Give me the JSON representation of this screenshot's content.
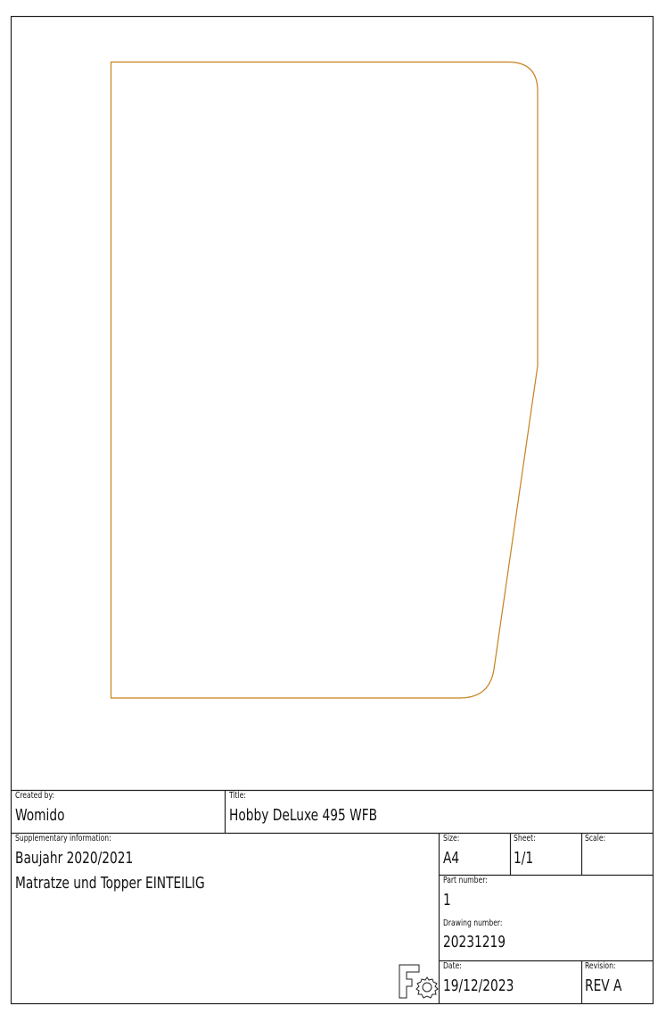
{
  "colors": {
    "outline": "#c8811e",
    "frame": "#222222"
  },
  "title_block": {
    "created_by": {
      "label": "Created by:",
      "value": "Womido"
    },
    "title": {
      "label": "Title:",
      "value": "Hobby DeLuxe 495 WFB"
    },
    "supplementary": {
      "label": "Supplementary information:",
      "lines": [
        "Baujahr 2020/2021",
        "Matratze und Topper EINTEILIG"
      ]
    },
    "size": {
      "label": "Size:",
      "value": "A4"
    },
    "sheet": {
      "label": "Sheet:",
      "value": "1/1"
    },
    "scale": {
      "label": "Scale:",
      "value": ""
    },
    "part_number": {
      "label": "Part number:",
      "value": "1"
    },
    "drawing_number": {
      "label": "Drawing number:",
      "value": "20231219"
    },
    "date": {
      "label": "Date:",
      "value": "19/12/2023"
    },
    "revision": {
      "label": "Revision:",
      "value": "REV A"
    },
    "logo": "freecad-logo-icon"
  }
}
